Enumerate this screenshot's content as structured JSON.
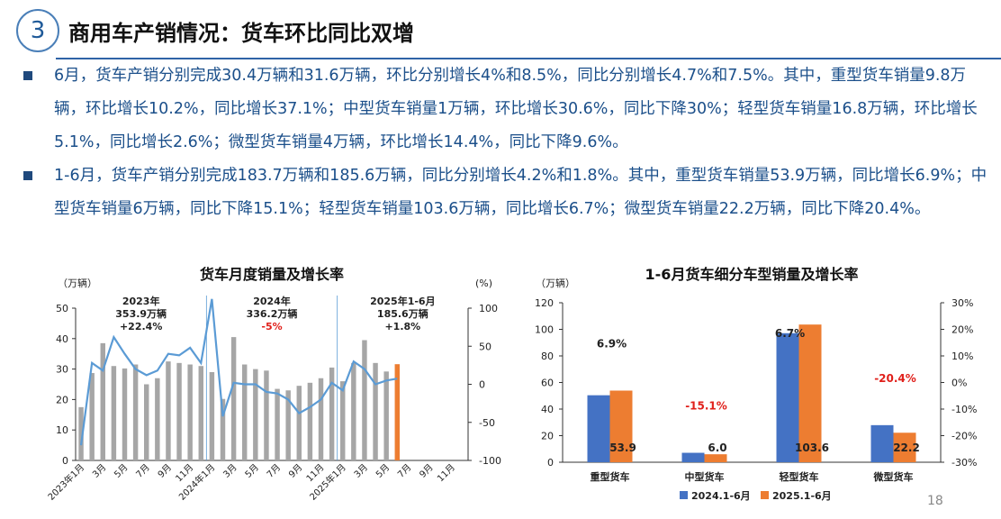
{
  "header": {
    "number": "3",
    "title": "商用车产销情况：货车环比同比双增"
  },
  "bullets": [
    "6月，货车产销分别完成30.4万辆和31.6万辆，环比分别增长4%和8.5%，同比分别增长4.7%和7.5%。其中，重型货车销量9.8万辆，环比增长10.2%，同比增长37.1%；中型货车销量1万辆，环比增长30.6%，同比下降30%；轻型货车销量16.8万辆，环比增长5.1%，同比增长2.6%；微型货车销量4万辆，环比增长14.4%，同比下降9.6%。",
    "1-6月，货车产销分别完成183.7万辆和185.6万辆，同比分别增长4.2%和1.8%。其中，重型货车销量53.9万辆，同比增长6.9%；中型货车销量6万辆，同比下降15.1%；轻型货车销量103.6万辆，同比增长6.7%；微型货车销量22.2万辆，同比下降20.4%。"
  ],
  "page_number": "18",
  "colors": {
    "gray_bar": "#a6a6a6",
    "line": "#5b9bd5",
    "orange": "#ed7d31",
    "blue": "#4472c4",
    "red_text": "#e0201b",
    "heading_blue": "#1b4f8a"
  },
  "chart_data": [
    {
      "type": "bar",
      "title": "货车月度销量及增长率",
      "ylabel": "（万辆）",
      "y2label": "(%)",
      "ylim": [
        0,
        50
      ],
      "y_ticks": [
        0,
        10,
        20,
        30,
        40,
        50
      ],
      "y2lim": [
        -100,
        100
      ],
      "y2_ticks": [
        -100,
        -50,
        0,
        50,
        100
      ],
      "x_tick_labels": [
        "2023年1月",
        "3月",
        "5月",
        "7月",
        "9月",
        "11月",
        "2024年1月",
        "3月",
        "5月",
        "7月",
        "9月",
        "11月",
        "2025年1月",
        "3月",
        "5月",
        "7月",
        "9月",
        "11月"
      ],
      "annotations": [
        {
          "lines": [
            "2023年",
            "353.9万辆",
            "+22.4%"
          ],
          "red_last": false
        },
        {
          "lines": [
            "2024年",
            "336.2万辆",
            "-5%"
          ],
          "red_last": true
        },
        {
          "lines": [
            "2025年1-6月",
            "185.6万辆",
            "+1.8%"
          ],
          "red_last": false
        }
      ],
      "series": [
        {
          "name": "销量",
          "values": [
            17.5,
            28.7,
            38.5,
            31,
            30.2,
            31.5,
            25,
            27,
            32.5,
            32,
            31.5,
            31,
            29,
            20.2,
            40.5,
            31.5,
            30,
            29.5,
            23.5,
            23,
            24.5,
            25.5,
            27,
            30.5,
            26,
            32,
            39.5,
            32,
            29.2,
            31.6,
            null,
            null,
            null,
            null,
            null,
            null
          ],
          "highlight_last": true
        },
        {
          "name": "增长率",
          "values": [
            -80,
            28,
            18,
            62,
            40,
            20,
            12,
            18,
            40,
            38,
            48,
            28,
            112,
            -42,
            2,
            0,
            0,
            -10,
            -12,
            -20,
            -38,
            -30,
            -20,
            2,
            -8,
            30,
            20,
            0,
            5,
            7.5,
            null,
            null,
            null,
            null,
            null,
            null
          ]
        }
      ]
    },
    {
      "type": "bar",
      "title": "1-6月货车细分车型销量及增长率",
      "ylabel": "（万辆）",
      "ylim": [
        0,
        120
      ],
      "y_ticks": [
        0,
        20,
        40,
        60,
        80,
        100,
        120
      ],
      "y2lim": [
        -30,
        30
      ],
      "y2_ticks": [
        "-30%",
        "-20%",
        "-10%",
        "0%",
        "10%",
        "20%",
        "30%"
      ],
      "categories": [
        "重型货车",
        "中型货车",
        "轻型货车",
        "微型货车"
      ],
      "series": [
        {
          "name": "2024.1-6月",
          "values": [
            50.4,
            7.1,
            97.1,
            27.9
          ]
        },
        {
          "name": "2025.1-6月",
          "values": [
            53.9,
            6.0,
            103.6,
            22.2
          ]
        }
      ],
      "value_labels": [
        "53.9",
        "6.0",
        "103.6",
        "22.2"
      ],
      "growth_labels": [
        "6.9%",
        "-15.1%",
        "6.7%",
        "-20.4%"
      ],
      "legend_position": "bottom"
    }
  ]
}
